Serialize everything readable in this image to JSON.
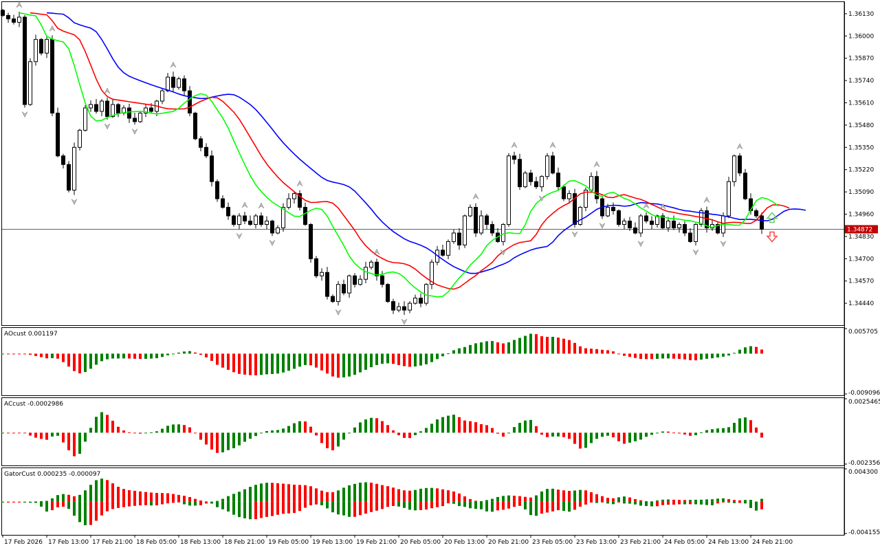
{
  "chart_data": {
    "type": "candlestick",
    "symbol_panel": {
      "price_ticks": [
        "1.36130",
        "1.36000",
        "1.35870",
        "1.35740",
        "1.35610",
        "1.35480",
        "1.35350",
        "1.35220",
        "1.35090",
        "1.34960",
        "1.34830",
        "1.34700",
        "1.34570",
        "1.34440"
      ],
      "current_price": "1.34872",
      "current_price_value": 1.34872,
      "ylim": [
        1.34312,
        1.36202
      ],
      "close": [
        1.3612,
        1.361,
        1.3608,
        1.3611,
        1.356,
        1.3585,
        1.3598,
        1.359,
        1.3598,
        1.3555,
        1.353,
        1.3525,
        1.351,
        1.3535,
        1.3545,
        1.3558,
        1.356,
        1.3556,
        1.3562,
        1.3553,
        1.356,
        1.3555,
        1.3558,
        1.3552,
        1.355,
        1.3555,
        1.3558,
        1.3556,
        1.3562,
        1.3568,
        1.3576,
        1.357,
        1.3575,
        1.3568,
        1.3555,
        1.354,
        1.3535,
        1.353,
        1.3515,
        1.3505,
        1.35,
        1.3495,
        1.349,
        1.3495,
        1.3492,
        1.349,
        1.3495,
        1.349,
        1.3492,
        1.3485,
        1.3488,
        1.35,
        1.3505,
        1.3508,
        1.35,
        1.349,
        1.347,
        1.346,
        1.3462,
        1.3448,
        1.3445,
        1.3455,
        1.345,
        1.346,
        1.3455,
        1.3458,
        1.3465,
        1.3468,
        1.346,
        1.3455,
        1.3445,
        1.344,
        1.3442,
        1.344,
        1.3444,
        1.3447,
        1.3444,
        1.3455,
        1.3468,
        1.3475,
        1.3472,
        1.348,
        1.3485,
        1.3478,
        1.3495,
        1.35,
        1.3485,
        1.3495,
        1.349,
        1.3485,
        1.348,
        1.349,
        1.353,
        1.3528,
        1.3512,
        1.352,
        1.3515,
        1.3512,
        1.3518,
        1.353,
        1.352,
        1.3512,
        1.3505,
        1.3508,
        1.349,
        1.35,
        1.351,
        1.3518,
        1.3505,
        1.3495,
        1.35,
        1.3498,
        1.349,
        1.3492,
        1.3488,
        1.3485,
        1.3495,
        1.3492,
        1.349,
        1.3495,
        1.3488,
        1.3492,
        1.3488,
        1.349,
        1.3485,
        1.348,
        1.349,
        1.3498,
        1.3488,
        1.349,
        1.3485,
        1.3495,
        1.3515,
        1.353,
        1.352,
        1.3505,
        1.3498,
        1.3495,
        1.34872
      ],
      "series_lines": [
        {
          "name": "Jaw",
          "color": "#0000ff"
        },
        {
          "name": "Teeth",
          "color": "#ff0000"
        },
        {
          "name": "Lips",
          "color": "#00ff00"
        }
      ]
    },
    "ao_panel": {
      "label": "AOcust 0.001197",
      "ylim": [
        -0.009096,
        0.005705
      ],
      "max_label": "0.005705",
      "min_label": "-0.009096"
    },
    "ac_panel": {
      "label": "ACcust -0.0002986",
      "ylim": [
        -0.0023561,
        0.0025465
      ],
      "max_label": "0.0025465",
      "min_label": "-0.0023561"
    },
    "gator_panel": {
      "label": "GatorCust 0.000235 -0.000097",
      "ylim": [
        -0.004155,
        0.0043
      ],
      "max_label": "0.004300",
      "min_label": "-0.004155"
    },
    "x_labels": [
      "17 Feb 2026",
      "17 Feb 13:00",
      "17 Feb 21:00",
      "18 Feb 05:00",
      "18 Feb 13:00",
      "18 Feb 21:00",
      "19 Feb 05:00",
      "19 Feb 13:00",
      "19 Feb 21:00",
      "20 Feb 05:00",
      "20 Feb 13:00",
      "20 Feb 21:00",
      "23 Feb 05:00",
      "23 Feb 13:00",
      "23 Feb 21:00",
      "24 Feb 05:00",
      "24 Feb 13:00",
      "24 Feb 21:00"
    ],
    "colors": {
      "up": "#008000",
      "down": "#ff0000",
      "price_tag": "#c00000"
    }
  }
}
